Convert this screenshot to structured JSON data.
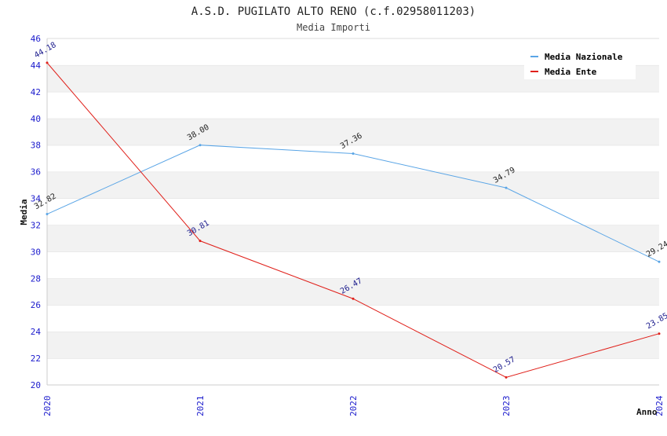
{
  "chart_data": {
    "type": "line",
    "title": "A.S.D. PUGILATO ALTO RENO (c.f.02958011203)",
    "subtitle": "Media Importi",
    "xlabel": "Anno",
    "ylabel": "Media",
    "ylim": [
      20,
      46
    ],
    "yticks": [
      "20",
      "22",
      "24",
      "26",
      "28",
      "30",
      "32",
      "34",
      "36",
      "38",
      "40",
      "42",
      "44",
      "46"
    ],
    "categories": [
      "2020",
      "2021",
      "2022",
      "2023",
      "2024"
    ],
    "grid": "horizontal alternating bands",
    "legend_position": "top-right",
    "series": [
      {
        "name": "Media Nazionale",
        "color": "#5aa5e6",
        "values": [
          32.82,
          38.0,
          37.36,
          34.79,
          29.24
        ],
        "labels": [
          "32.82",
          "38.00",
          "37.36",
          "34.79",
          "29.24"
        ]
      },
      {
        "name": "Media Ente",
        "color": "#e0201a",
        "values": [
          44.18,
          30.81,
          26.47,
          20.57,
          23.85
        ],
        "labels": [
          "44.18",
          "30.81",
          "26.47",
          "20.57",
          "23.85"
        ]
      }
    ]
  }
}
